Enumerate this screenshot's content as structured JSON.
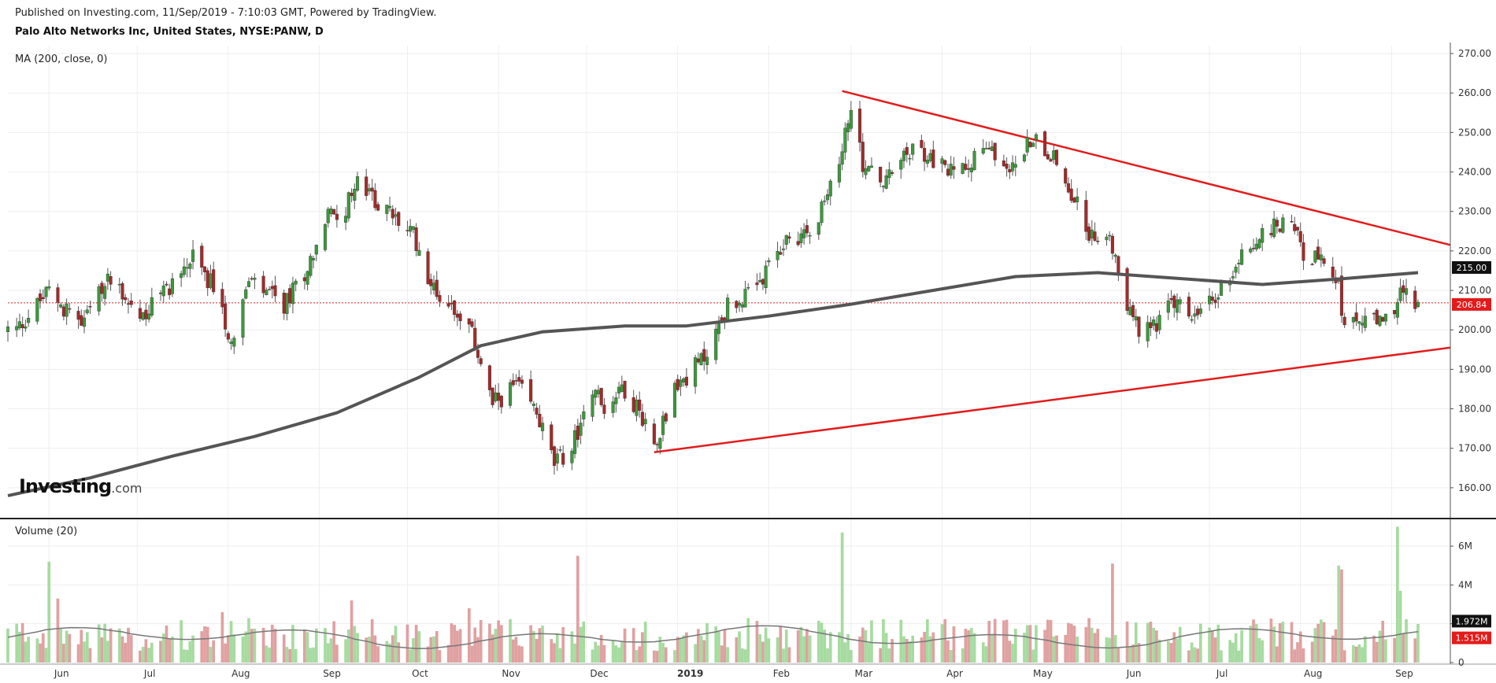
{
  "header": {
    "published": "Published on Investing.com, 11/Sep/2019 - 7:10:03 GMT, Powered by TradingView.",
    "title": "Palo Alto Networks Inc, United States, NYSE:PANW, D"
  },
  "logo": {
    "text": "Investing",
    "suffix": ".com"
  },
  "colors": {
    "up": "#26a69a",
    "up_candle": "#3c9a3c",
    "down_candle": "#a52a2a",
    "trendline": "#e31b1b",
    "ma": "#555555",
    "vol_up": "#a6dba0",
    "vol_down": "#e0a1a1",
    "price_line": "#e31b1b"
  },
  "chart_data": [
    {
      "type": "candlestick",
      "title": "Palo Alto Networks Inc, United States, NYSE:PANW, D",
      "indicator_label": "MA (200, close, 0)",
      "x_tick_labels": [
        "Jun",
        "Jul",
        "Aug",
        "Sep",
        "Oct",
        "Nov",
        "Dec",
        "2019",
        "Feb",
        "Mar",
        "Apr",
        "May",
        "Jun",
        "Jul",
        "Aug",
        "Sep"
      ],
      "y_ticks": [
        160,
        170,
        180,
        190,
        200,
        210,
        220,
        230,
        240,
        250,
        260,
        270
      ],
      "y_tick_labels": [
        "160.00",
        "170.00",
        "180.00",
        "190.00",
        "200.00",
        "210.00",
        "220.00",
        "230.00",
        "240.00",
        "250.00",
        "260.00",
        "270.00"
      ],
      "ylim": [
        153,
        272
      ],
      "price_path": [
        [
          "2018-05-21",
          200
        ],
        [
          "2018-06-01",
          210
        ],
        [
          "2018-06-12",
          201
        ],
        [
          "2018-06-22",
          214
        ],
        [
          "2018-07-02",
          203
        ],
        [
          "2018-07-13",
          212
        ],
        [
          "2018-07-20",
          218
        ],
        [
          "2018-07-27",
          211
        ],
        [
          "2018-08-02",
          197
        ],
        [
          "2018-08-08",
          212
        ],
        [
          "2018-08-20",
          206
        ],
        [
          "2018-08-28",
          216
        ],
        [
          "2018-09-04",
          229
        ],
        [
          "2018-09-10",
          231
        ],
        [
          "2018-09-14",
          237
        ],
        [
          "2018-09-24",
          230
        ],
        [
          "2018-10-03",
          224
        ],
        [
          "2018-10-10",
          210
        ],
        [
          "2018-10-18",
          205
        ],
        [
          "2018-10-24",
          197
        ],
        [
          "2018-10-30",
          181
        ],
        [
          "2018-11-07",
          186
        ],
        [
          "2018-11-14",
          179
        ],
        [
          "2018-11-20",
          166
        ],
        [
          "2018-11-26",
          170
        ],
        [
          "2018-12-03",
          186
        ],
        [
          "2018-12-07",
          180
        ],
        [
          "2018-12-13",
          186
        ],
        [
          "2018-12-20",
          178
        ],
        [
          "2018-12-24",
          171
        ],
        [
          "2018-12-31",
          185
        ],
        [
          "2019-01-10",
          193
        ],
        [
          "2019-01-18",
          206
        ],
        [
          "2019-01-28",
          210
        ],
        [
          "2019-02-06",
          222
        ],
        [
          "2019-02-14",
          225
        ],
        [
          "2019-02-21",
          233
        ],
        [
          "2019-02-26",
          246
        ],
        [
          "2019-03-01",
          257
        ],
        [
          "2019-03-05",
          242
        ],
        [
          "2019-03-12",
          237
        ],
        [
          "2019-03-22",
          246
        ],
        [
          "2019-04-04",
          240
        ],
        [
          "2019-04-16",
          246
        ],
        [
          "2019-04-25",
          241
        ],
        [
          "2019-05-02",
          249
        ],
        [
          "2019-05-08",
          245
        ],
        [
          "2019-05-15",
          235
        ],
        [
          "2019-05-22",
          223
        ],
        [
          "2019-05-28",
          226
        ],
        [
          "2019-05-31",
          212
        ],
        [
          "2019-06-07",
          199
        ],
        [
          "2019-06-13",
          202
        ],
        [
          "2019-06-19",
          207
        ],
        [
          "2019-06-26",
          203
        ],
        [
          "2019-07-03",
          208
        ],
        [
          "2019-07-12",
          219
        ],
        [
          "2019-07-22",
          226
        ],
        [
          "2019-07-29",
          228
        ],
        [
          "2019-08-02",
          220
        ],
        [
          "2019-08-09",
          216
        ],
        [
          "2019-08-14",
          212
        ],
        [
          "2019-08-16",
          199
        ],
        [
          "2019-08-22",
          203
        ],
        [
          "2019-08-29",
          201
        ],
        [
          "2019-09-04",
          209
        ],
        [
          "2019-09-10",
          207
        ]
      ],
      "series": [
        {
          "name": "MA (200, close, 0)",
          "points": [
            [
              "2018-05-18",
              158
            ],
            [
              "2018-06-15",
              162.5
            ],
            [
              "2018-07-13",
              168
            ],
            [
              "2018-08-10",
              173
            ],
            [
              "2018-09-07",
              179
            ],
            [
              "2018-10-05",
              188
            ],
            [
              "2018-10-26",
              196
            ],
            [
              "2018-11-16",
              199.5
            ],
            [
              "2018-12-14",
              201
            ],
            [
              "2019-01-04",
              201
            ],
            [
              "2019-02-01",
              203.5
            ],
            [
              "2019-03-01",
              206.5
            ],
            [
              "2019-03-29",
              210
            ],
            [
              "2019-04-26",
              213.5
            ],
            [
              "2019-05-24",
              214.5
            ],
            [
              "2019-06-21",
              213
            ],
            [
              "2019-07-19",
              211.5
            ],
            [
              "2019-08-16",
              213
            ],
            [
              "2019-09-10",
              214.5
            ]
          ]
        }
      ],
      "trendlines": [
        {
          "name": "upper",
          "from": [
            "2019-02-26",
            260.5
          ],
          "to": [
            "2019-09-21",
            221.5
          ]
        },
        {
          "name": "lower",
          "from": [
            "2018-12-24",
            169
          ],
          "to": [
            "2019-09-21",
            195.5
          ]
        }
      ],
      "last_price_labels": [
        {
          "value": "215.00",
          "color": "#111111"
        },
        {
          "value": "206.84",
          "color": "#e31b1b"
        }
      ],
      "last_close": 206.84,
      "ma_last": 215.0
    },
    {
      "type": "bar",
      "title": "Volume (20)",
      "indicator_label": "Volume (20)",
      "y_ticks": [
        0,
        2,
        4,
        6
      ],
      "y_tick_labels": [
        "0",
        "",
        "4M",
        "6M"
      ],
      "ylim": [
        0,
        7.3
      ],
      "unit": "M",
      "spikes": [
        [
          "2018-06-01",
          5.2
        ],
        [
          "2018-06-04",
          3.3
        ],
        [
          "2018-07-30",
          2.6
        ],
        [
          "2018-09-12",
          3.2
        ],
        [
          "2018-10-22",
          2.8
        ],
        [
          "2018-11-28",
          5.5
        ],
        [
          "2019-02-26",
          6.7
        ],
        [
          "2019-05-29",
          5.1
        ],
        [
          "2019-08-14",
          5.0
        ],
        [
          "2019-08-15",
          4.8
        ],
        [
          "2019-09-03",
          7.0
        ],
        [
          "2019-09-04",
          3.7
        ]
      ],
      "last_value_labels": [
        {
          "value": "1.972M",
          "color": "#111111"
        },
        {
          "value": "1.515M",
          "color": "#e31b1b"
        }
      ],
      "volume_ma_last": 1.972,
      "volume_last": 1.515
    }
  ]
}
